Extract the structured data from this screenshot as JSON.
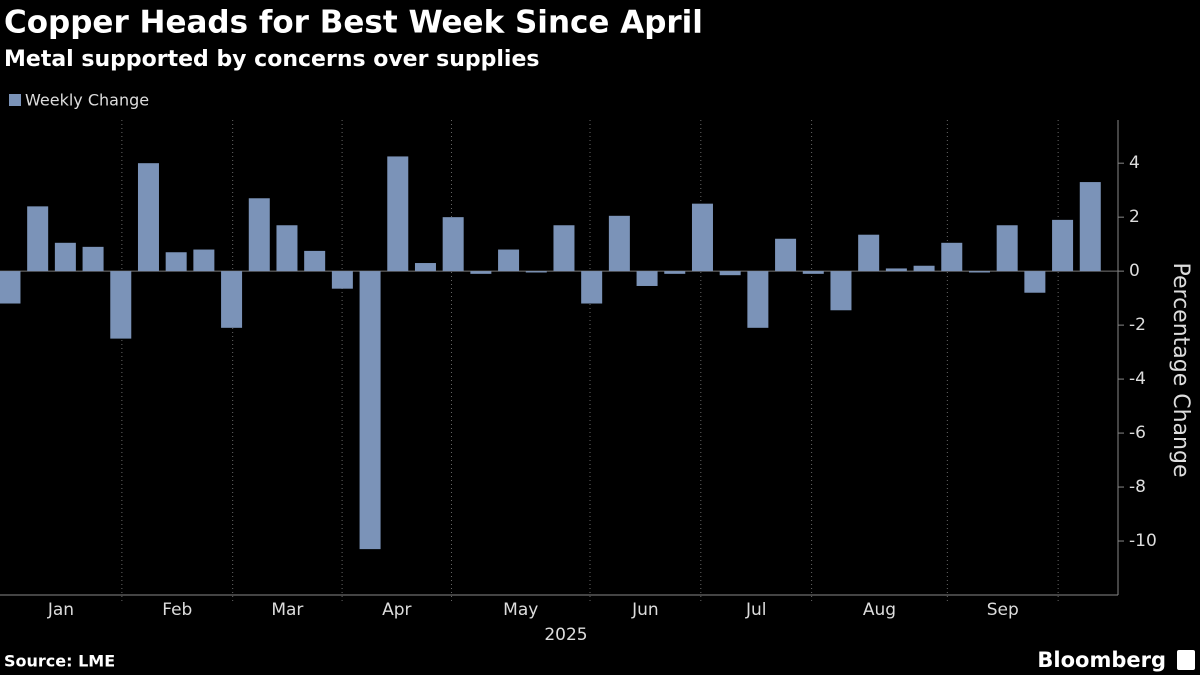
{
  "chart_data": {
    "type": "bar",
    "title": "Copper Heads for Best Week Since April",
    "subtitle": "Metal supported by concerns over supplies",
    "legend": "Weekly Change",
    "y_label": "Percentage Change",
    "source": "Source: LME",
    "brand": "Bloomberg",
    "year": "2025",
    "months": [
      "Jan",
      "Feb",
      "Mar",
      "Apr",
      "May",
      "Jun",
      "Jul",
      "Aug",
      "Sep"
    ],
    "categories": [
      null,
      null,
      null,
      null,
      null,
      null,
      null,
      null,
      null,
      null,
      null,
      null,
      null,
      null,
      null,
      null,
      null,
      null,
      null,
      null,
      null,
      null,
      null,
      null,
      null,
      null,
      null,
      null,
      null,
      null,
      null,
      null,
      null,
      null,
      null,
      null,
      null,
      null,
      null,
      null
    ],
    "values": [
      -1.2,
      2.4,
      1.05,
      0.9,
      -2.5,
      4.0,
      0.7,
      0.8,
      -2.1,
      2.7,
      1.7,
      0.75,
      -0.65,
      -10.3,
      4.25,
      0.3,
      2.0,
      -0.1,
      0.8,
      -0.05,
      1.7,
      -1.2,
      2.05,
      -0.55,
      -0.1,
      2.5,
      -0.15,
      -2.1,
      1.2,
      -0.1,
      -1.45,
      1.35,
      0.1,
      0.2,
      1.05,
      -0.05,
      1.7,
      -0.8,
      1.9,
      3.3
    ],
    "color": "#7b93b8",
    "ylim": [
      -12,
      5.6
    ],
    "yticks": [
      -10,
      -8,
      -6,
      -4,
      -2,
      0,
      2,
      4
    ],
    "y_axis_side": "right"
  }
}
